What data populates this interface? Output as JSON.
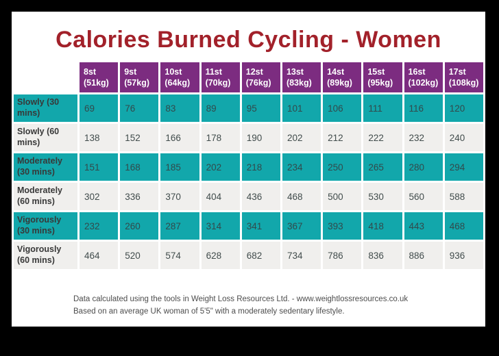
{
  "title": "Calories Burned Cycling - Women",
  "chart_data": {
    "type": "table",
    "title": "Calories Burned Cycling - Women",
    "columns": [
      "8st (51kg)",
      "9st (57kg)",
      "10st (64kg)",
      "11st (70kg)",
      "12st (76kg)",
      "13st (83kg)",
      "14st (89kg)",
      "15st (95kg)",
      "16st (102kg)",
      "17st (108kg)"
    ],
    "column_lines": [
      [
        "8st",
        "(51kg)"
      ],
      [
        "9st",
        "(57kg)"
      ],
      [
        "10st",
        "(64kg)"
      ],
      [
        "11st",
        "(70kg)"
      ],
      [
        "12st",
        "(76kg)"
      ],
      [
        "13st",
        "(83kg)"
      ],
      [
        "14st",
        "(89kg)"
      ],
      [
        "15st",
        "(95kg)"
      ],
      [
        "16st",
        "(102kg)"
      ],
      [
        "17st",
        "(108kg)"
      ]
    ],
    "rows": [
      {
        "label": "Slowly (30 mins)",
        "values": [
          69,
          76,
          83,
          89,
          95,
          101,
          106,
          111,
          116,
          120
        ]
      },
      {
        "label": "Slowly (60 mins)",
        "values": [
          138,
          152,
          166,
          178,
          190,
          202,
          212,
          222,
          232,
          240
        ]
      },
      {
        "label": "Moderately (30 mins)",
        "values": [
          151,
          168,
          185,
          202,
          218,
          234,
          250,
          265,
          280,
          294
        ]
      },
      {
        "label": "Moderately (60 mins)",
        "values": [
          302,
          336,
          370,
          404,
          436,
          468,
          500,
          530,
          560,
          588
        ]
      },
      {
        "label": "Vigorously (30 mins)",
        "values": [
          232,
          260,
          287,
          314,
          341,
          367,
          393,
          418,
          443,
          468
        ]
      },
      {
        "label": "Vigorously (60 mins)",
        "values": [
          464,
          520,
          574,
          628,
          682,
          734,
          786,
          836,
          886,
          936
        ]
      }
    ]
  },
  "footer": {
    "line1": "Data calculated using the tools in Weight Loss Resources Ltd. - www.weightlossresources.co.uk",
    "line2": "Based on an average UK woman of 5'5\" with a moderately sedentary lifestyle."
  },
  "colors": {
    "title": "#a2212a",
    "header_bg": "#7c2c80",
    "teal_row_bg": "#12a7ab",
    "light_row_bg": "#f0efed",
    "frame": "#000000"
  }
}
